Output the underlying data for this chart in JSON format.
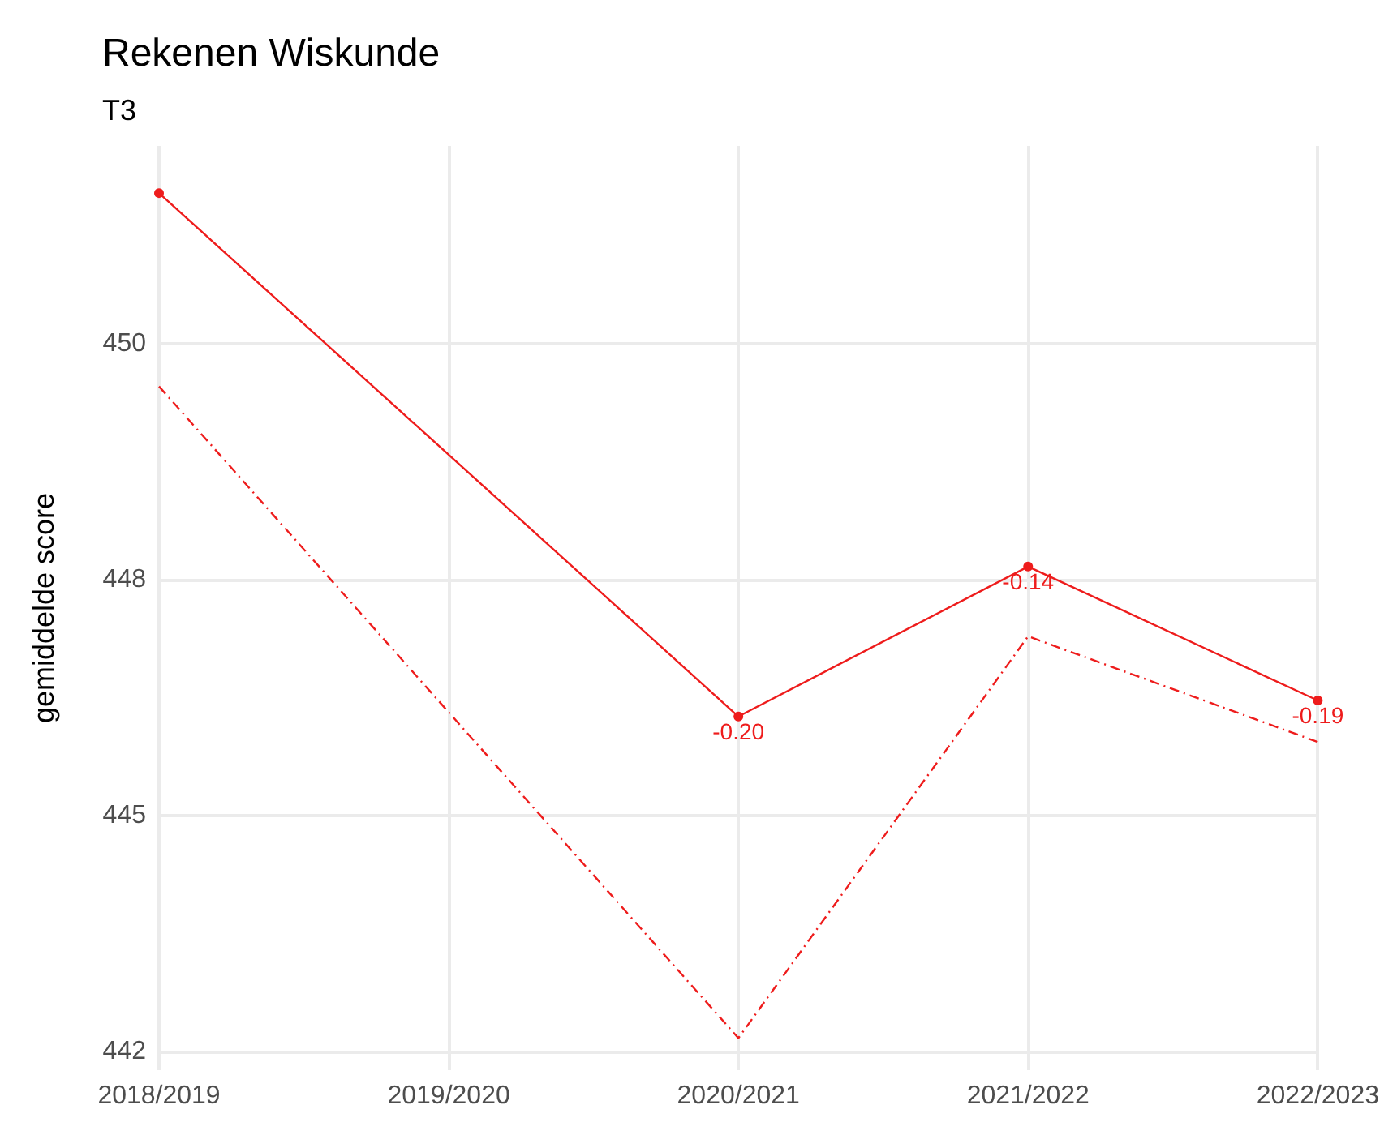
{
  "chart_data": {
    "type": "line",
    "title": "Rekenen Wiskunde",
    "subtitle": "T3",
    "ylabel": "gemiddelde score",
    "categories": [
      "2018/2019",
      "2019/2020",
      "2020/2021",
      "2021/2022",
      "2022/2023"
    ],
    "series": [
      {
        "color": "#ee1c1c",
        "values": [
          451.6,
          null,
          446.05,
          447.64,
          446.22
        ],
        "marker": "circle",
        "line_style": "solid"
      },
      {
        "color": "#ee1c1c",
        "values": [
          449.55,
          null,
          442.64,
          446.9,
          445.78
        ],
        "marker": "none",
        "line_style": "dashed"
      }
    ],
    "ylim": [
      442.3,
      452.1
    ],
    "yticks": [
      {
        "value": 442.5,
        "label": "442"
      },
      {
        "value": 445,
        "label": "445"
      },
      {
        "value": 447.5,
        "label": "448"
      },
      {
        "value": 450,
        "label": "450"
      }
    ],
    "annotations": [
      {
        "text": "-0.20",
        "x": "2020/2021",
        "y": 446.05
      },
      {
        "text": "-0.14",
        "x": "2021/2022",
        "y": 447.64
      },
      {
        "text": "-0.19",
        "x": "2022/2023",
        "y": 446.22
      }
    ],
    "grid": true
  }
}
